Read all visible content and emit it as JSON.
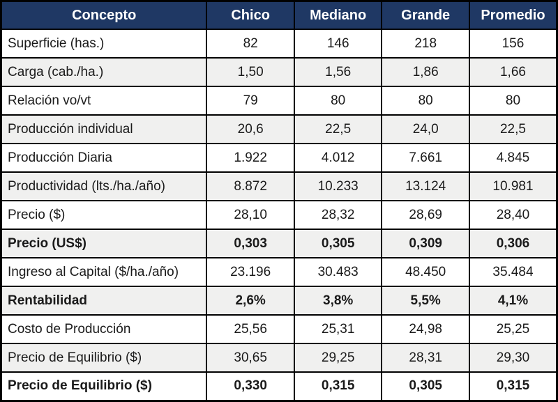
{
  "table": {
    "columns": [
      "Concepto",
      "Chico",
      "Mediano",
      "Grande",
      "Promedio"
    ],
    "rows": [
      {
        "cells": [
          "Superficie (has.)",
          "82",
          "146",
          "218",
          "156"
        ]
      },
      {
        "cells": [
          "Carga (cab./ha.)",
          "1,50",
          "1,56",
          "1,86",
          "1,66"
        ]
      },
      {
        "cells": [
          "Relación vo/vt",
          "79",
          "80",
          "80",
          "80"
        ]
      },
      {
        "cells": [
          "Producción individual",
          "20,6",
          "22,5",
          "24,0",
          "22,5"
        ]
      },
      {
        "cells": [
          "Producción Diaria",
          "1.922",
          "4.012",
          "7.661",
          "4.845"
        ]
      },
      {
        "cells": [
          "Productividad (lts./ha./año)",
          "8.872",
          "10.233",
          "13.124",
          "10.981"
        ]
      },
      {
        "cells": [
          "Precio ($)",
          "28,10",
          "28,32",
          "28,69",
          "28,40"
        ]
      },
      {
        "cells": [
          "Precio (US$)",
          "0,303",
          "0,305",
          "0,309",
          "0,306"
        ]
      },
      {
        "cells": [
          "Ingreso al Capital ($/ha./año)",
          "23.196",
          "30.483",
          "48.450",
          "35.484"
        ]
      },
      {
        "cells": [
          "Rentabilidad",
          "2,6%",
          "3,8%",
          "5,5%",
          "4,1%"
        ]
      },
      {
        "cells": [
          "Costo de Producción",
          "25,56",
          "25,31",
          "24,98",
          "25,25"
        ]
      },
      {
        "cells": [
          "Precio de Equilibrio ($)",
          "30,65",
          "29,25",
          "28,31",
          "29,30"
        ]
      },
      {
        "cells": [
          "Precio de Equilibrio ($)",
          "0,330",
          "0,315",
          "0,305",
          "0,315"
        ]
      }
    ],
    "colors": {
      "header_bg": "#1f3864",
      "header_text": "#ffffff",
      "row_shaded_bg": "#f0f0ef",
      "row_plain_bg": "#ffffff",
      "border": "#000000"
    }
  }
}
